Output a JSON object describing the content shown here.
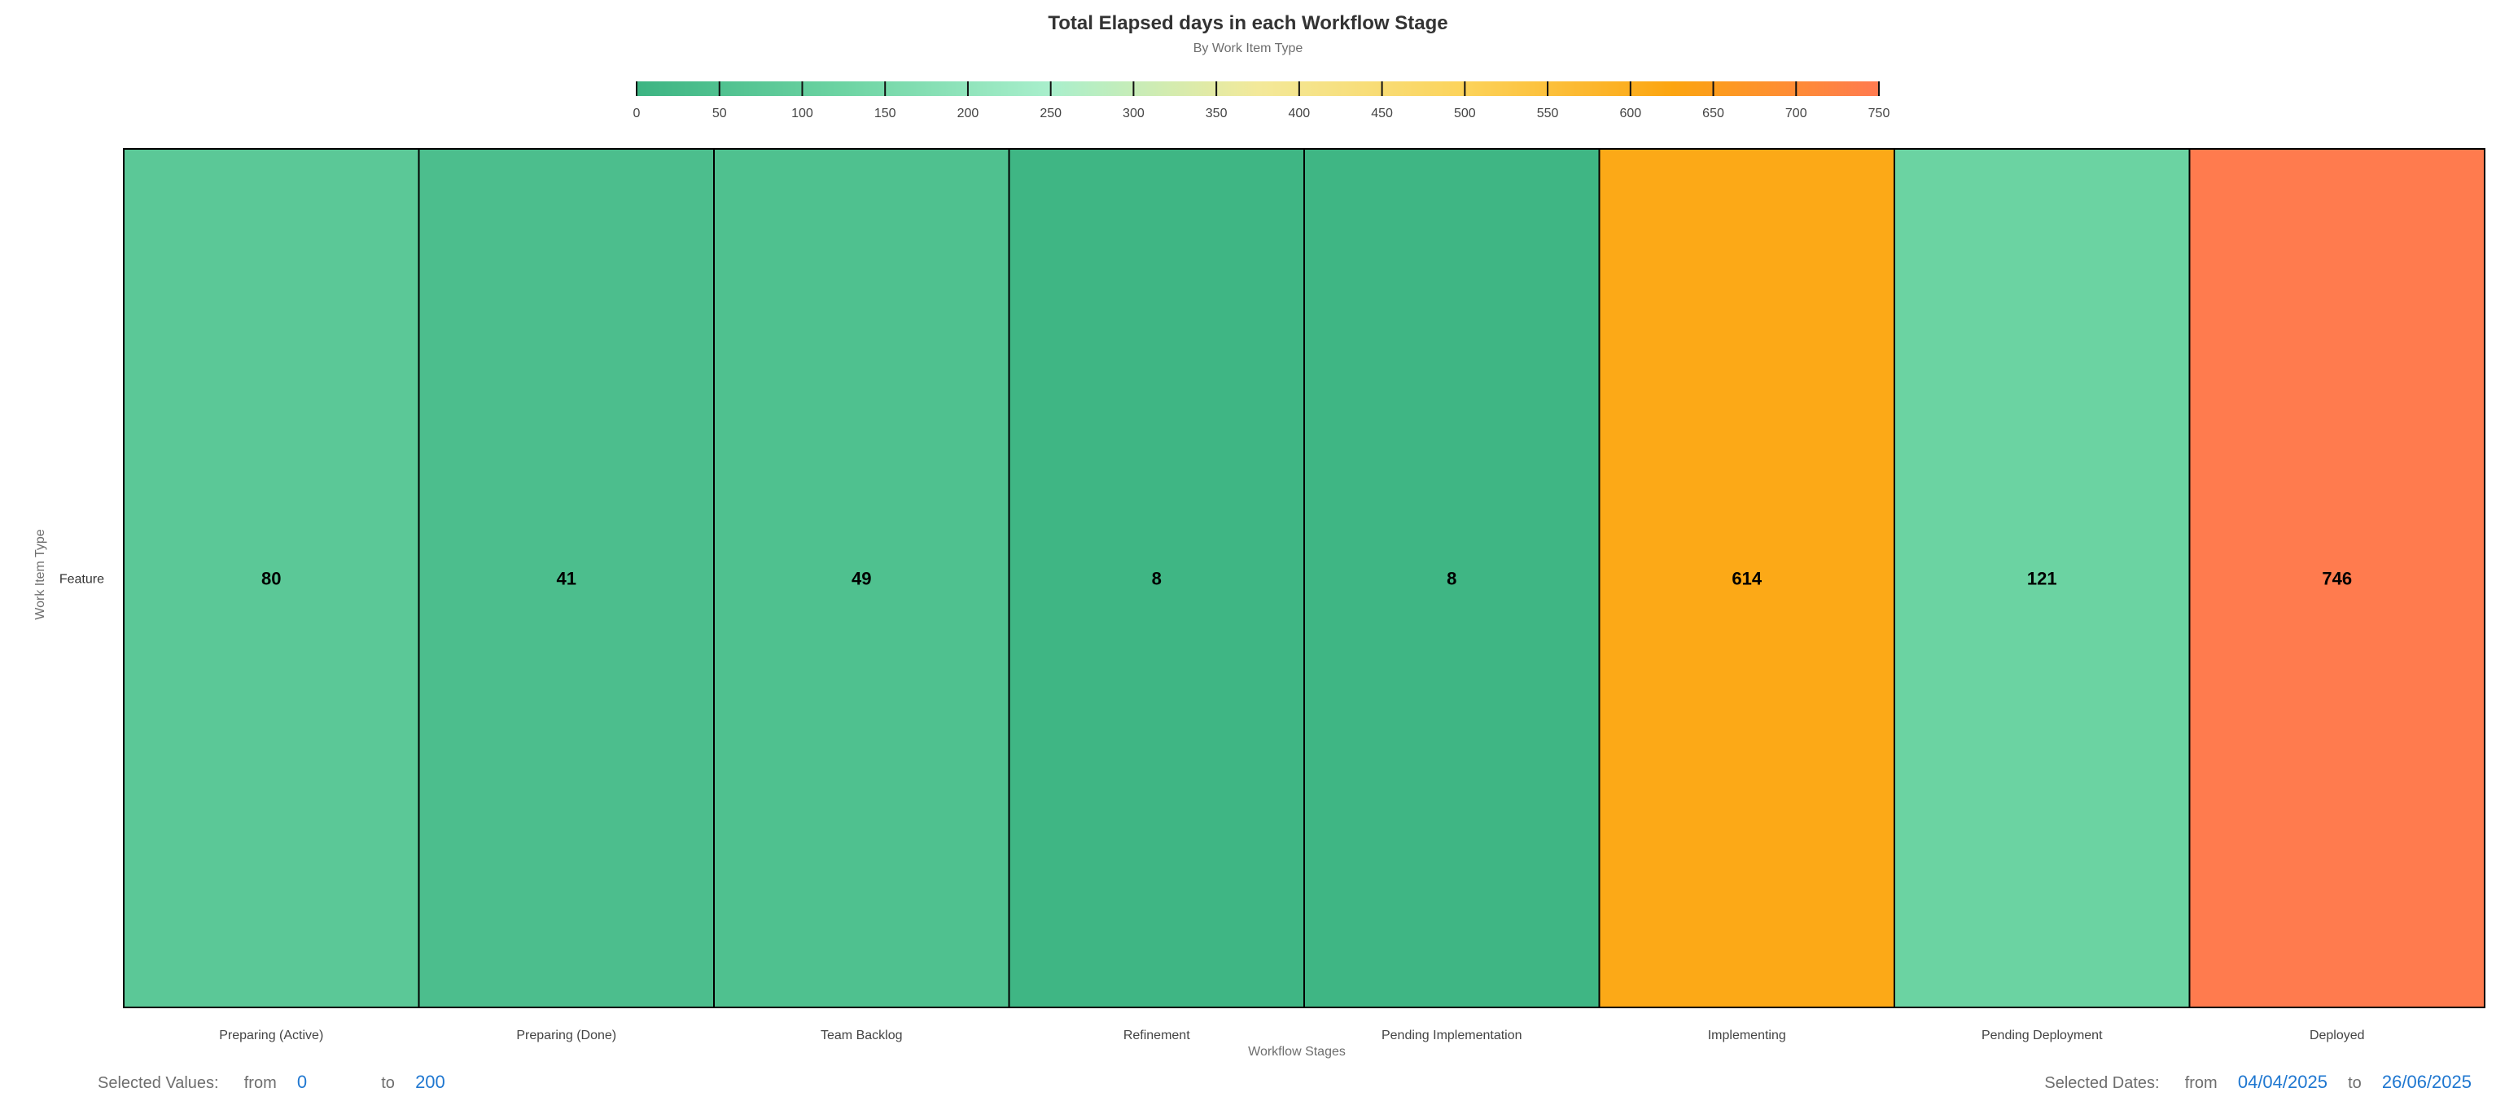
{
  "colors": {
    "scale_stops": [
      "#3cb482",
      "#6dd4a3",
      "#a9efcc",
      "#f3e99a",
      "#fcd35a",
      "#fca510",
      "#ff7a50"
    ],
    "cell_border": "#000000",
    "text_dark": "#333333",
    "text_muted": "#6e6e6e",
    "link_blue": "#1f77d0"
  },
  "chart_data": {
    "type": "heatmap",
    "title": "Total Elapsed days in each Workflow Stage",
    "subtitle": "By Work Item Type",
    "xlabel": "Workflow Stages",
    "ylabel": "Work Item Type",
    "x_categories": [
      "Preparing (Active)",
      "Preparing (Done)",
      "Team Backlog",
      "Refinement",
      "Pending Implementation",
      "Implementing",
      "Pending Deployment",
      "Deployed"
    ],
    "y_categories": [
      "Feature"
    ],
    "values": [
      [
        80,
        41,
        49,
        8,
        8,
        614,
        121,
        746
      ]
    ],
    "color_scale": {
      "min": 0,
      "max": 750,
      "ticks": [
        0,
        50,
        100,
        150,
        200,
        250,
        300,
        350,
        400,
        450,
        500,
        550,
        600,
        650,
        700,
        750
      ]
    },
    "grid": false,
    "legend": "top-center"
  },
  "footer": {
    "values_label": "Selected Values:",
    "values_from_label": "from",
    "values_from": "0",
    "values_to_label": "to",
    "values_to": "200",
    "dates_label": "Selected Dates:",
    "dates_from_label": "from",
    "dates_from": "04/04/2025",
    "dates_to_label": "to",
    "dates_to": "26/06/2025"
  }
}
